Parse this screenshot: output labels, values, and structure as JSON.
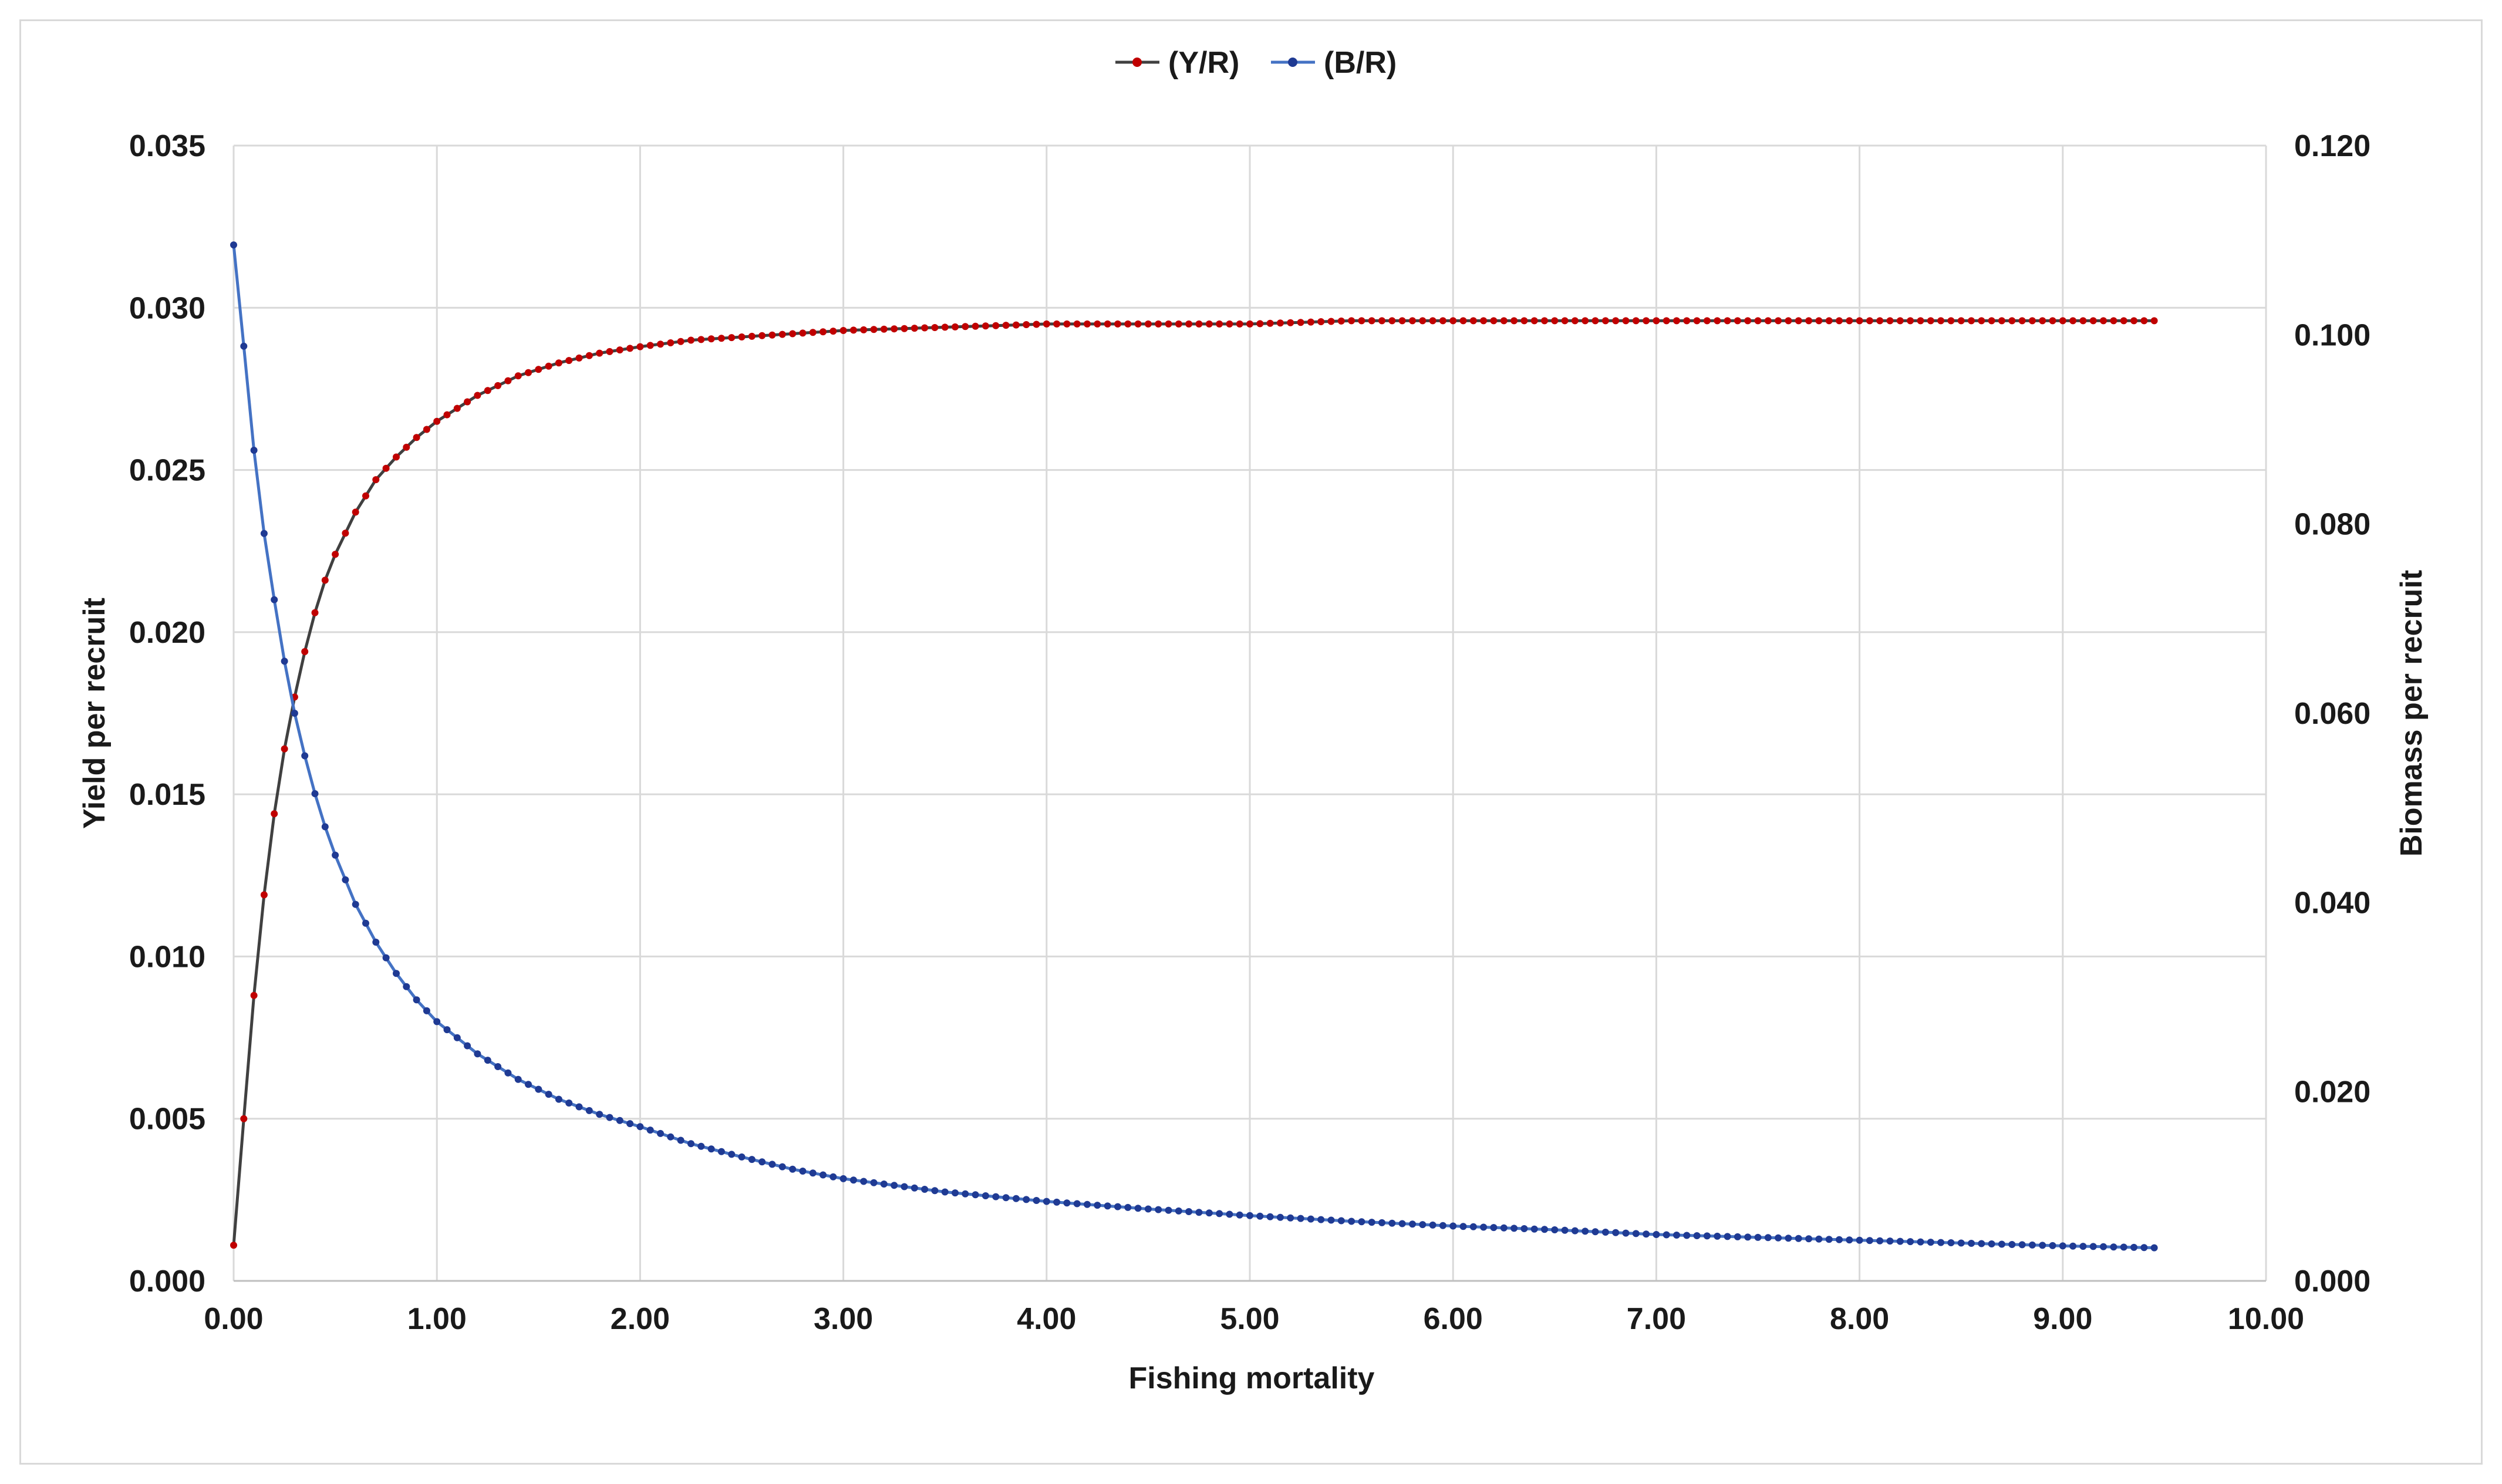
{
  "chart_data": {
    "type": "line",
    "xlabel": "Fishing mortality",
    "ylabel_left": "Yield per recruit",
    "ylabel_right": "Biomass per recruit",
    "xlim": [
      0,
      10
    ],
    "ylim_left": [
      0,
      0.035
    ],
    "ylim_right": [
      0,
      0.12
    ],
    "x_ticks": [
      "0.00",
      "1.00",
      "2.00",
      "3.00",
      "4.00",
      "5.00",
      "6.00",
      "7.00",
      "8.00",
      "9.00",
      "10.00"
    ],
    "y_left_ticks": [
      "0.000",
      "0.005",
      "0.010",
      "0.015",
      "0.020",
      "0.025",
      "0.030",
      "0.035"
    ],
    "y_right_ticks": [
      "0.000",
      "0.020",
      "0.040",
      "0.060",
      "0.080",
      "0.100",
      "0.120"
    ],
    "grid": true,
    "legend_position": "top",
    "x": [
      0.0,
      0.05,
      0.1,
      0.15,
      0.2,
      0.25,
      0.3,
      0.35,
      0.4,
      0.45,
      0.5,
      0.6,
      0.7,
      0.8,
      0.9,
      1.0,
      1.2,
      1.4,
      1.6,
      1.8,
      2.0,
      2.25,
      2.5,
      2.75,
      3.0,
      3.5,
      4.0,
      4.5,
      5.0,
      5.5,
      6.0,
      6.5,
      7.0,
      7.5,
      8.0,
      8.5,
      9.0,
      9.45
    ],
    "series": [
      {
        "name": "(Y/R)",
        "axis": "left",
        "line_color": "#404040",
        "marker_color": "#c00000",
        "values": [
          0.0011,
          0.005,
          0.0088,
          0.0119,
          0.0144,
          0.0164,
          0.018,
          0.0194,
          0.0206,
          0.0216,
          0.0224,
          0.0237,
          0.0247,
          0.0254,
          0.026,
          0.0265,
          0.0273,
          0.0279,
          0.0283,
          0.0286,
          0.0288,
          0.029,
          0.0291,
          0.0292,
          0.0293,
          0.0294,
          0.0295,
          0.0295,
          0.0295,
          0.0296,
          0.0296,
          0.0296,
          0.0296,
          0.0296,
          0.0296,
          0.0296,
          0.0296,
          0.0296
        ]
      },
      {
        "name": "(B/R)",
        "axis": "right",
        "line_color": "#4472c4",
        "marker_color": "#1f3a93",
        "values": [
          0.1095,
          0.0988,
          0.0878,
          0.079,
          0.072,
          0.0655,
          0.06,
          0.0555,
          0.0515,
          0.048,
          0.045,
          0.0398,
          0.0358,
          0.0325,
          0.0297,
          0.0274,
          0.024,
          0.0213,
          0.0192,
          0.0176,
          0.0163,
          0.0145,
          0.0131,
          0.0118,
          0.0108,
          0.0094,
          0.0084,
          0.0076,
          0.0069,
          0.0063,
          0.0058,
          0.0054,
          0.0049,
          0.0046,
          0.0043,
          0.004,
          0.0037,
          0.0035
        ]
      }
    ]
  }
}
